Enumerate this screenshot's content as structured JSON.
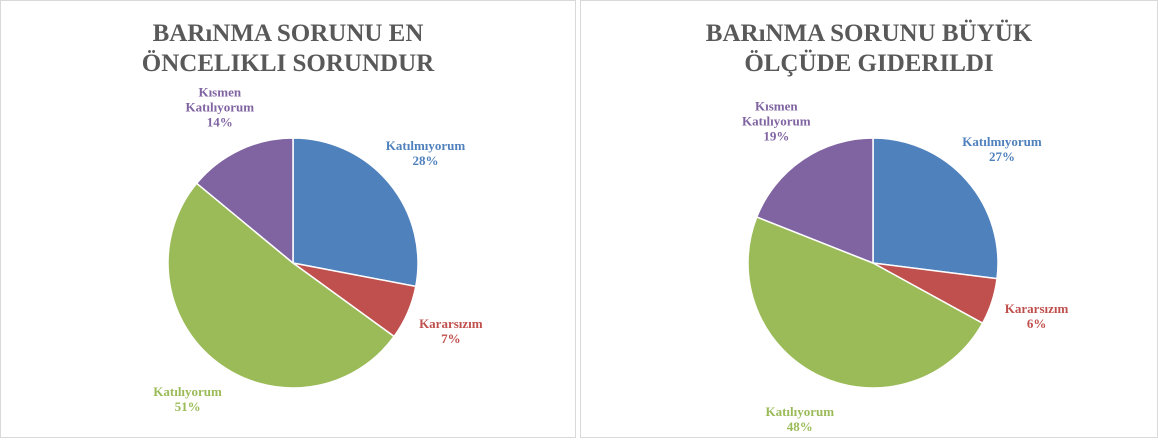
{
  "chart_data": [
    {
      "type": "pie",
      "title": "BARıNMA SORUNU EN ÖNCELIKLI SORUNDUR",
      "categories": [
        "Katılmıyorum",
        "Kararsızım",
        "Katılıyorum",
        "Kısmen Katılıyorum"
      ],
      "values": [
        28,
        7,
        51,
        14
      ],
      "value_labels": [
        "28%",
        "7%",
        "51%",
        "14%"
      ],
      "colors": [
        "#4f81bd",
        "#c0504d",
        "#9bbb59",
        "#8064a2"
      ]
    },
    {
      "type": "pie",
      "title": "BARıNMA SORUNU BÜYÜK ÖLÇÜDE GIDERILDI",
      "categories": [
        "Katılmıyorum",
        "Kararsızım",
        "Katılıyorum",
        "Kısmen Katılıyorum"
      ],
      "values": [
        27,
        6,
        48,
        19
      ],
      "value_labels": [
        "27%",
        "6%",
        "48%",
        "19%"
      ],
      "colors": [
        "#4f81bd",
        "#c0504d",
        "#9bbb59",
        "#8064a2"
      ]
    }
  ]
}
